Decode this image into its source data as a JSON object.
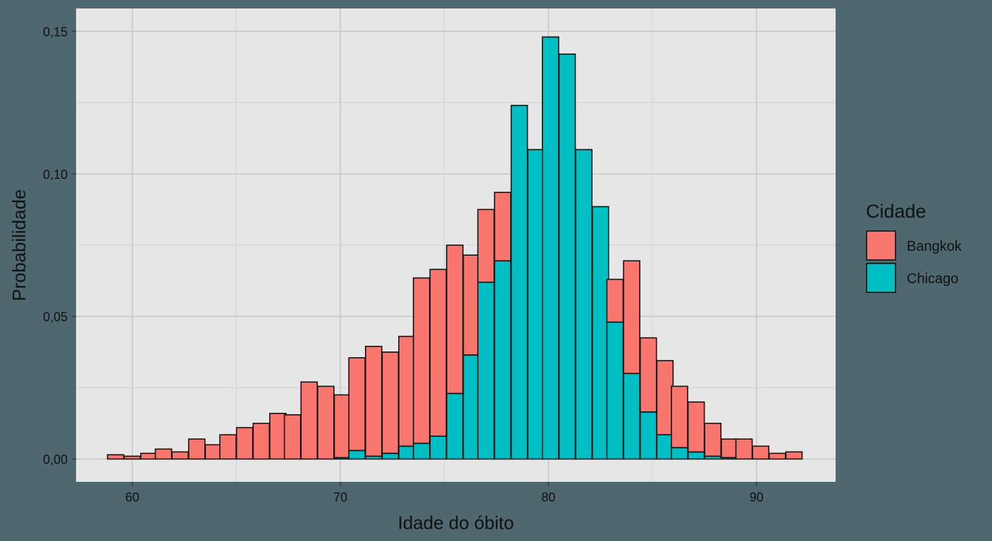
{
  "chart_data": {
    "type": "bar",
    "stacked": true,
    "xlabel": "Idade do óbito",
    "ylabel": "Probabilidade",
    "xlim": [
      57.3,
      93.8
    ],
    "ylim": [
      -0.008,
      0.158
    ],
    "x_ticks": [
      60,
      70,
      80,
      90
    ],
    "x_tick_labels": [
      "60",
      "70",
      "80",
      "90"
    ],
    "y_ticks": [
      0,
      0.05,
      0.1,
      0.15
    ],
    "y_tick_labels": [
      "0,00",
      "0,05",
      "0,10",
      "0,15"
    ],
    "grid": true,
    "legend": {
      "title": "Cidade",
      "position": "right"
    },
    "bin_width": 0.78,
    "x": [
      59.2,
      60.0,
      60.8,
      61.5,
      62.3,
      63.1,
      63.9,
      64.6,
      65.4,
      66.2,
      67.0,
      67.7,
      68.5,
      69.3,
      70.1,
      70.8,
      71.6,
      72.4,
      73.2,
      73.9,
      74.7,
      75.5,
      76.3,
      77.0,
      77.8,
      78.6,
      79.4,
      80.1,
      80.9,
      81.7,
      82.5,
      83.2,
      84.0,
      84.8,
      85.6,
      86.3,
      87.1,
      87.9,
      88.7,
      89.4,
      90.2,
      91.0,
      91.8
    ],
    "series": [
      {
        "name": "Chicago",
        "color": "#00bfc4",
        "values": [
          0,
          0,
          0,
          0,
          0,
          0,
          0,
          0,
          0,
          0,
          0,
          0,
          0,
          0,
          0.0005,
          0.003,
          0.001,
          0.002,
          0.0045,
          0.0055,
          0.008,
          0.023,
          0.0365,
          0.062,
          0.0695,
          0.124,
          0.1085,
          0.148,
          0.142,
          0.1085,
          0.0885,
          0.048,
          0.03,
          0.0165,
          0.0085,
          0.004,
          0.0025,
          0.001,
          0.0005,
          0,
          0,
          0,
          0
        ]
      },
      {
        "name": "Bangkok",
        "color": "#f8766d",
        "values": [
          0.0015,
          0.001,
          0.002,
          0.0035,
          0.0025,
          0.007,
          0.005,
          0.0085,
          0.011,
          0.0125,
          0.016,
          0.0155,
          0.027,
          0.0255,
          0.022,
          0.0325,
          0.0385,
          0.0355,
          0.0385,
          0.058,
          0.0585,
          0.052,
          0.035,
          0.0255,
          0.024,
          0,
          0,
          0,
          0,
          0,
          0,
          0.015,
          0.0395,
          0.026,
          0.026,
          0.0215,
          0.0175,
          0.0115,
          0.0065,
          0.007,
          0.0045,
          0.002,
          0.0025
        ]
      }
    ]
  }
}
